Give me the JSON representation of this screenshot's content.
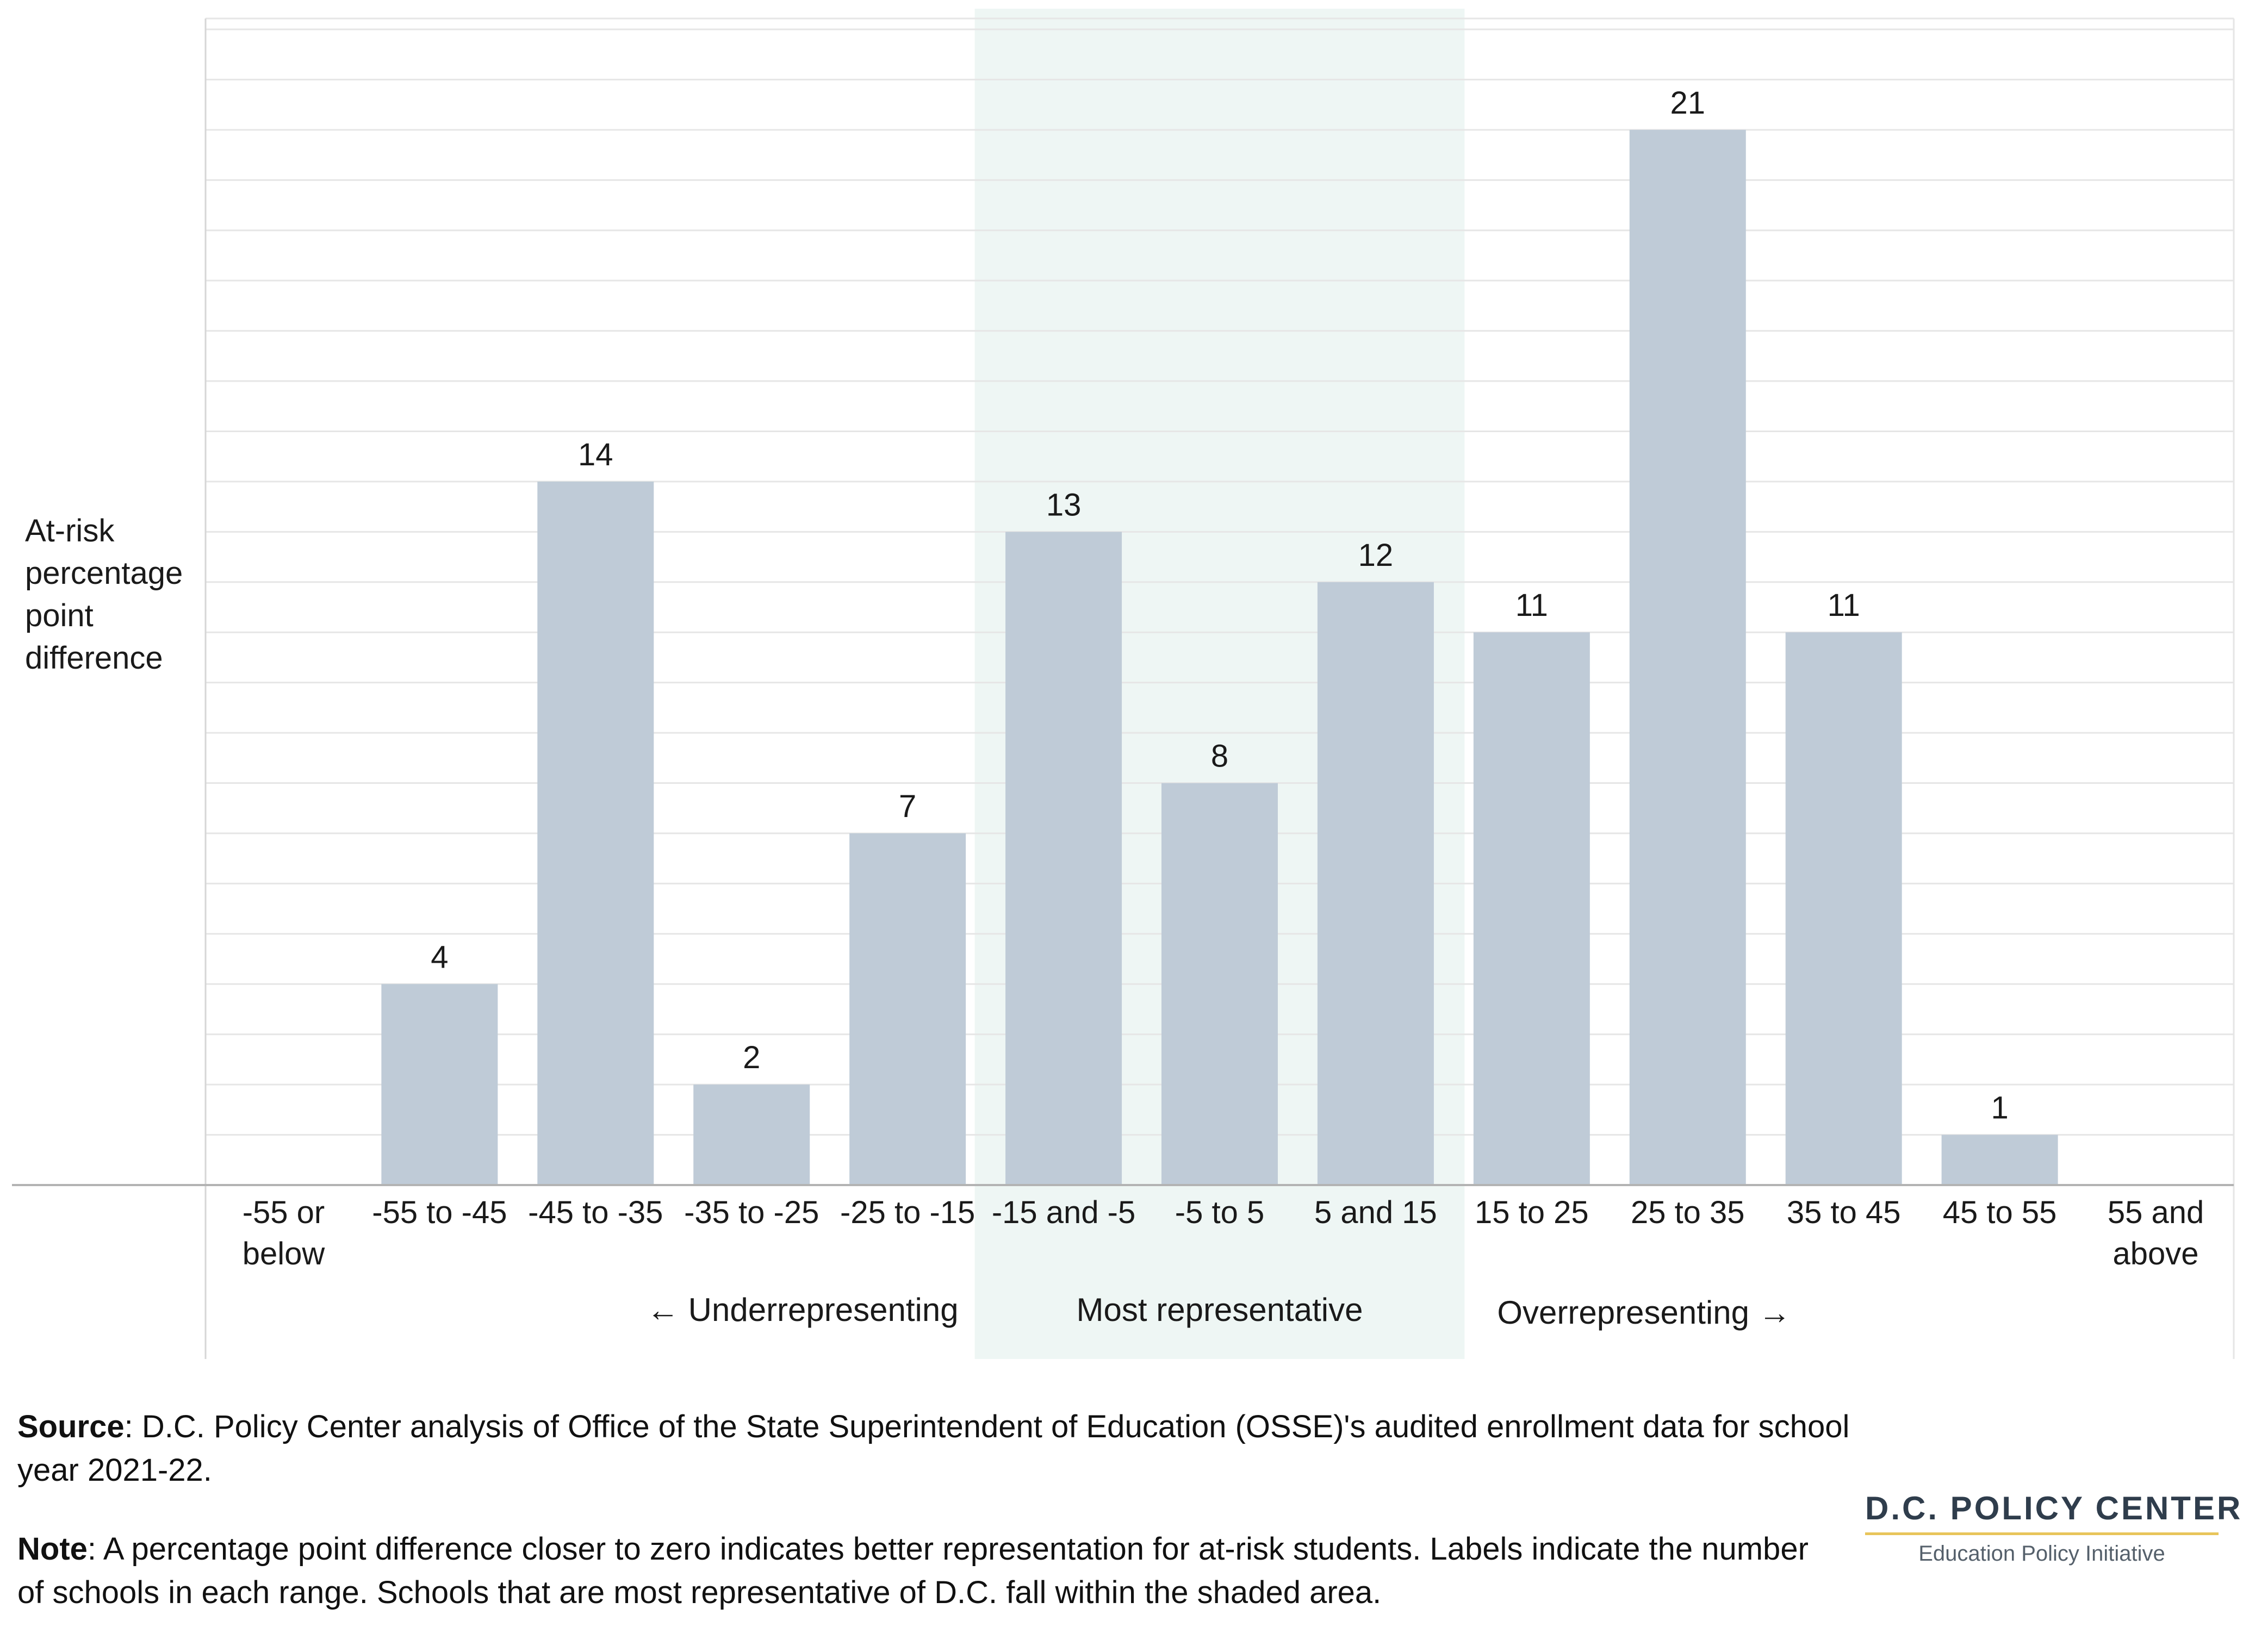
{
  "chart_data": {
    "type": "bar",
    "categories": [
      [
        "-55 or",
        "below"
      ],
      [
        "-55 to -45"
      ],
      [
        "-45 to -35"
      ],
      [
        "-35 to -25"
      ],
      [
        "-25 to -15"
      ],
      [
        "-15 and -5"
      ],
      [
        "-5 to 5"
      ],
      [
        "5 and 15"
      ],
      [
        "15 to 25"
      ],
      [
        "25 to 35"
      ],
      [
        "35 to 45"
      ],
      [
        "45 to 55"
      ],
      [
        "55 and",
        "above"
      ]
    ],
    "values": [
      0,
      4,
      14,
      2,
      7,
      13,
      8,
      12,
      11,
      21,
      11,
      1,
      0
    ],
    "data_labels": [
      "",
      "4",
      "14",
      "2",
      "7",
      "13",
      "8",
      "12",
      "11",
      "21",
      "11",
      "1",
      ""
    ],
    "ylabel": [
      "At-risk",
      "percentage",
      "point",
      "difference"
    ],
    "ylim": [
      0,
      23
    ],
    "grid": true,
    "highlight": {
      "from_category": 5,
      "to_category": 7,
      "label": "Most representative",
      "color": "#eef6f4"
    },
    "groups": [
      {
        "label": "Underrepresenting",
        "arrow": "left"
      },
      {
        "label": "Overrepresenting",
        "arrow": "right"
      }
    ],
    "bar_color": "#bfcbd7",
    "grid_color": "#e6e6e6",
    "axis_color": "#b3b3b3"
  },
  "notes": {
    "source_label": "Source",
    "source_text": ": D.C. Policy Center analysis of Office of the State Superintendent of Education (OSSE)'s audited enrollment data for school year 2021-22.",
    "note_label": "Note",
    "note_text": ": A percentage point difference closer to zero indicates better representation for at-risk students. Labels indicate the number of schools in each range. Schools that are most representative of D.C. fall within the shaded area."
  },
  "logo": {
    "title": "D.C. POLICY CENTER",
    "subtitle": "Education Policy Initiative"
  }
}
